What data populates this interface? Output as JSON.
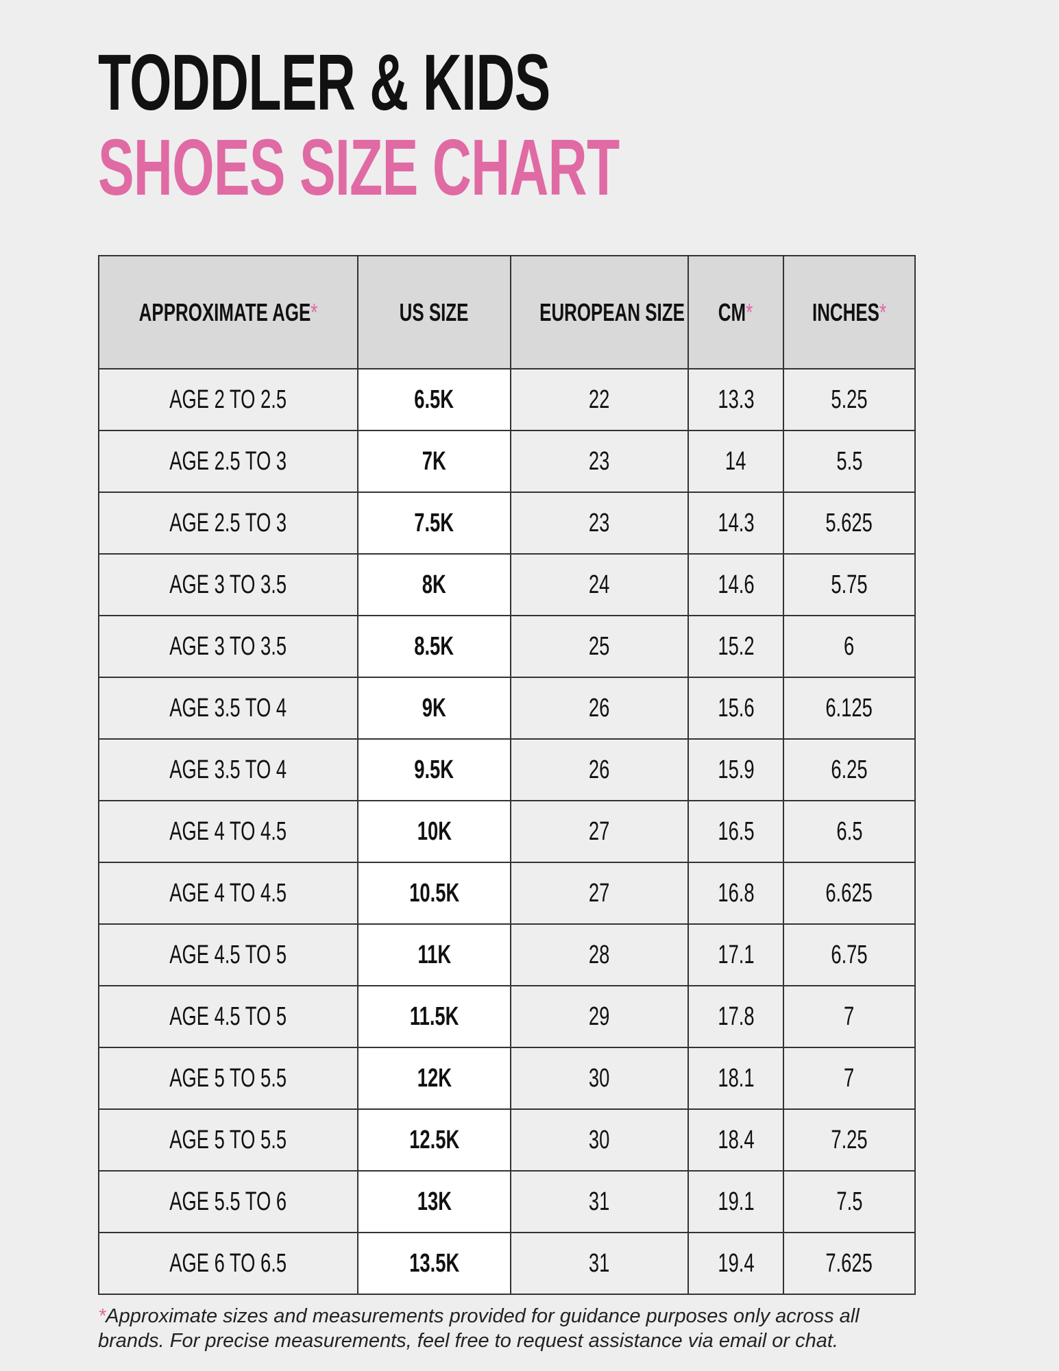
{
  "header": {
    "title": "TODDLER & KIDS",
    "subtitle": "SHOES SIZE CHART"
  },
  "table": {
    "columns": [
      {
        "text": "APPROXIMATE AGE",
        "mark": "*"
      },
      {
        "text": "US SIZE"
      },
      {
        "text": "EUROPEAN SIZE"
      },
      {
        "text": "CM",
        "mark": "*"
      },
      {
        "text": "INCHES",
        "mark": "*"
      }
    ],
    "rows": [
      [
        "AGE 2 TO 2.5",
        "6.5K",
        "22",
        "13.3",
        "5.25"
      ],
      [
        "AGE 2.5 TO 3",
        "7K",
        "23",
        "14",
        "5.5"
      ],
      [
        "AGE 2.5 TO 3",
        "7.5K",
        "23",
        "14.3",
        "5.625"
      ],
      [
        "AGE 3 TO 3.5",
        "8K",
        "24",
        "14.6",
        "5.75"
      ],
      [
        "AGE 3 TO 3.5",
        "8.5K",
        "25",
        "15.2",
        "6"
      ],
      [
        "AGE 3.5 TO 4",
        "9K",
        "26",
        "15.6",
        "6.125"
      ],
      [
        "AGE 3.5 TO 4",
        "9.5K",
        "26",
        "15.9",
        "6.25"
      ],
      [
        "AGE 4 TO 4.5",
        "10K",
        "27",
        "16.5",
        "6.5"
      ],
      [
        "AGE 4 TO 4.5",
        "10.5K",
        "27",
        "16.8",
        "6.625"
      ],
      [
        "AGE 4.5 TO 5",
        "11K",
        "28",
        "17.1",
        "6.75"
      ],
      [
        "AGE 4.5 TO 5",
        "11.5K",
        "29",
        "17.8",
        "7"
      ],
      [
        "AGE 5 TO 5.5",
        "12K",
        "30",
        "18.1",
        "7"
      ],
      [
        "AGE 5 TO 5.5",
        "12.5K",
        "30",
        "18.4",
        "7.25"
      ],
      [
        "AGE 5.5 TO 6",
        "13K",
        "31",
        "19.1",
        "7.5"
      ],
      [
        "AGE 6 TO 6.5",
        "13.5K",
        "31",
        "19.4",
        "7.625"
      ]
    ]
  },
  "footnote": {
    "mark": "*",
    "text": "Approximate sizes and measurements provided for guidance purposes only across all brands. For precise measurements, feel free to request assistance via email or chat."
  }
}
